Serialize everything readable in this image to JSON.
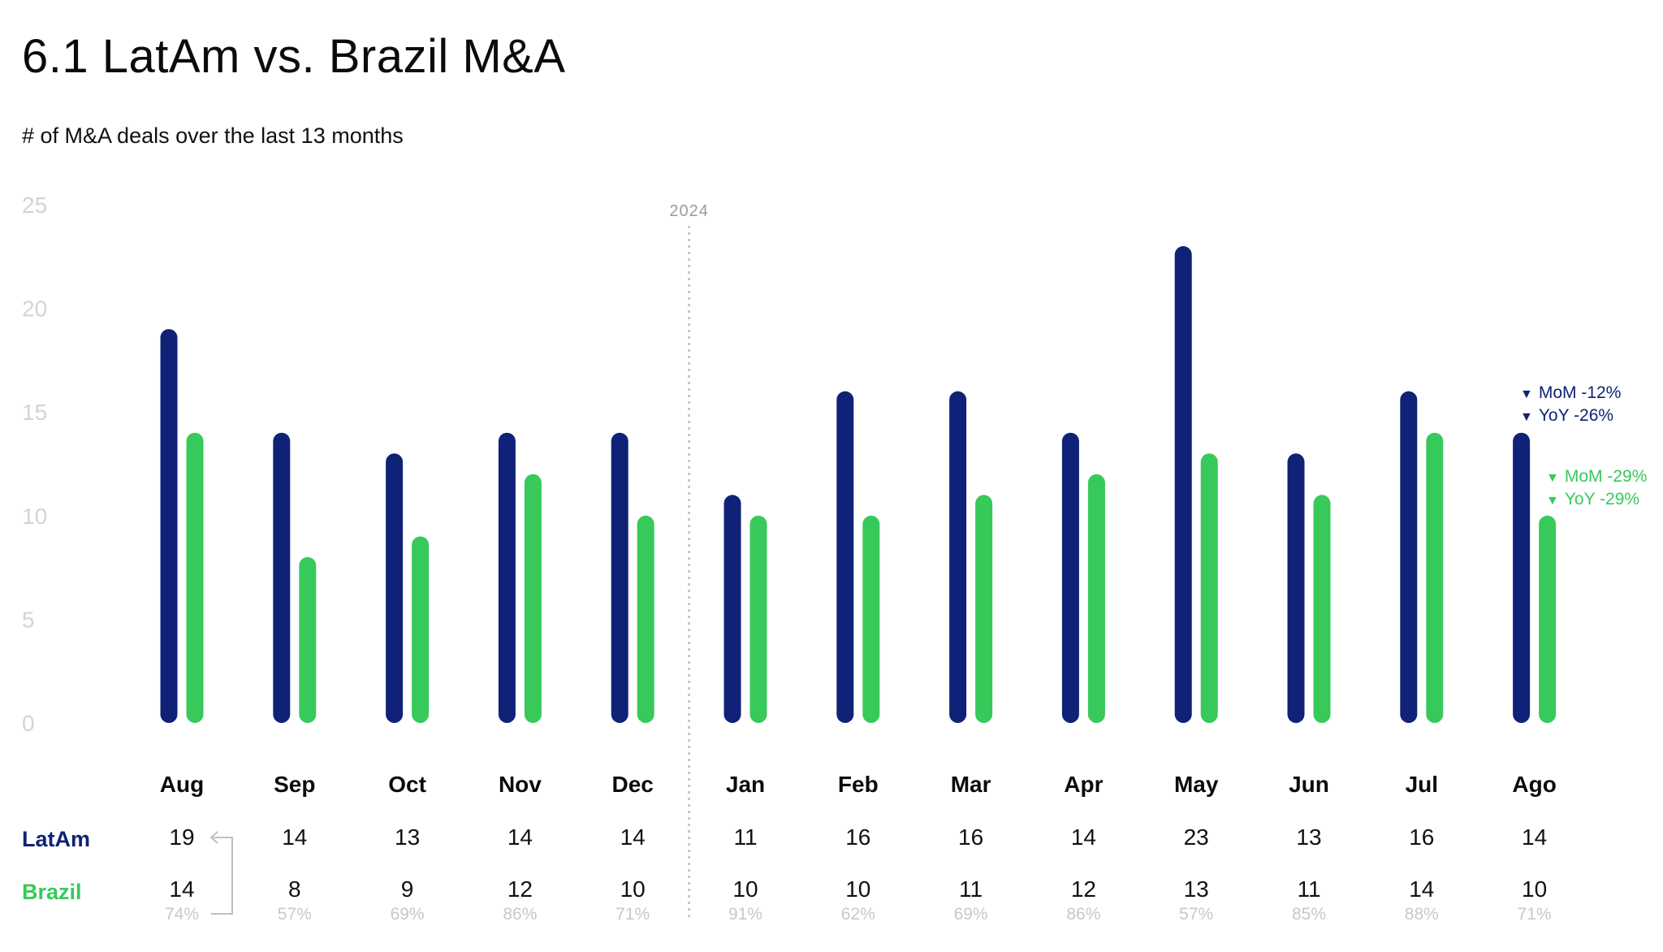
{
  "title": "6.1 LatAm vs. Brazil M&A",
  "subtitle": "# of M&A deals over the last 13 months",
  "divider_label": "2024",
  "row_labels": {
    "latam": "LatAm",
    "brazil": "Brazil"
  },
  "colors": {
    "latam": "#0f2277",
    "brazil": "#38c95b",
    "axis_text": "#d4d4d4",
    "pct_text": "#c8c8c8",
    "divider": "#bdbdbd"
  },
  "annotations": {
    "latam_mom": "MoM -12%",
    "latam_yoy": "YoY -26%",
    "brazil_mom": "MoM -29%",
    "brazil_yoy": "YoY -29%"
  },
  "chart_data": {
    "type": "bar",
    "categories": [
      "Aug",
      "Sep",
      "Oct",
      "Nov",
      "Dec",
      "Jan",
      "Feb",
      "Mar",
      "Apr",
      "May",
      "Jun",
      "Jul",
      "Ago"
    ],
    "series": [
      {
        "name": "LatAm",
        "values": [
          19,
          14,
          13,
          14,
          14,
          11,
          16,
          16,
          14,
          23,
          13,
          16,
          14
        ]
      },
      {
        "name": "Brazil",
        "values": [
          14,
          8,
          9,
          12,
          10,
          10,
          10,
          11,
          12,
          13,
          11,
          14,
          10
        ]
      }
    ],
    "share_labels": [
      "74%",
      "57%",
      "69%",
      "86%",
      "71%",
      "91%",
      "62%",
      "69%",
      "86%",
      "57%",
      "85%",
      "88%",
      "71%"
    ],
    "yticks": [
      0,
      5,
      10,
      15,
      20,
      25
    ],
    "ylim": [
      0,
      25
    ],
    "grid": false,
    "legend": "table-below"
  }
}
